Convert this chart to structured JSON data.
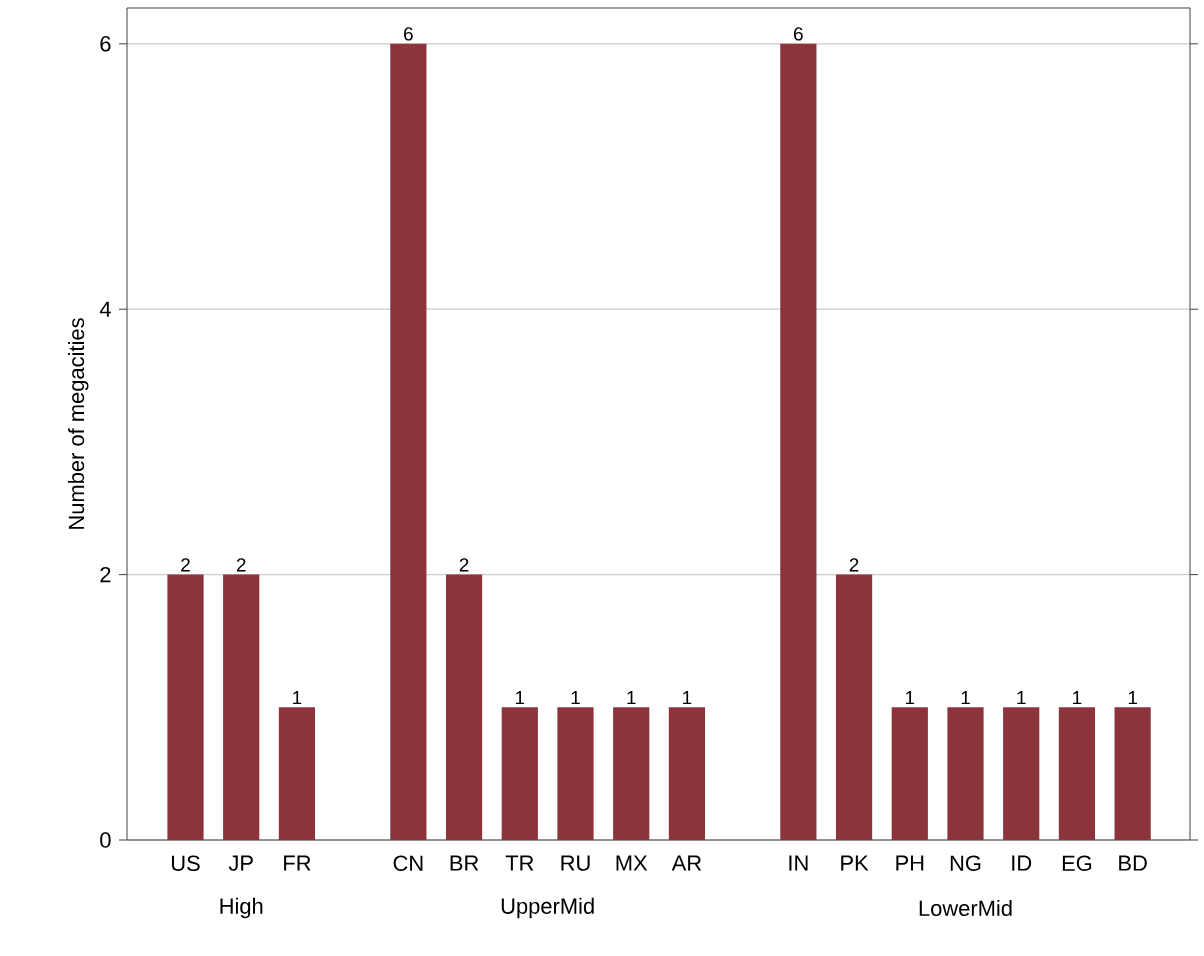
{
  "chart_data": {
    "type": "bar",
    "ylabel": "Number of megacities",
    "categories": [
      "US",
      "JP",
      "FR",
      null,
      "CN",
      "BR",
      "TR",
      "RU",
      "MX",
      "AR",
      null,
      "IN",
      "PK",
      "PH",
      "NG",
      "ID",
      "EG",
      "BD"
    ],
    "values": [
      2,
      2,
      1,
      null,
      6,
      2,
      1,
      1,
      1,
      1,
      null,
      6,
      2,
      1,
      1,
      1,
      1,
      1
    ],
    "color": "#8b343c",
    "ylim": [
      0,
      6.27
    ],
    "yticks": [
      0,
      2,
      4,
      6
    ],
    "grid": "y",
    "data_labels": true,
    "annotations": [
      "High",
      "UpperMid",
      "LowerMid"
    ]
  }
}
